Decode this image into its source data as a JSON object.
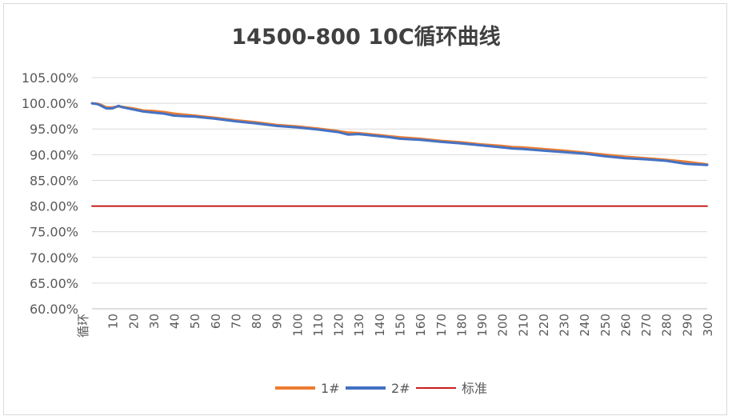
{
  "chart_data": {
    "type": "line",
    "title": "14500-800  10C循环曲线",
    "xlabel": "",
    "ylabel": "",
    "x_first_label": "循环",
    "x_ticks": [
      10,
      20,
      30,
      40,
      50,
      60,
      70,
      80,
      90,
      100,
      110,
      120,
      130,
      140,
      150,
      160,
      170,
      180,
      190,
      200,
      210,
      220,
      230,
      240,
      250,
      260,
      270,
      280,
      290,
      300
    ],
    "xlim": [
      0,
      300
    ],
    "ylim": [
      60,
      105
    ],
    "y_ticks": [
      "60.00%",
      "65.00%",
      "70.00%",
      "75.00%",
      "80.00%",
      "85.00%",
      "90.00%",
      "95.00%",
      "100.00%",
      "105.00%"
    ],
    "y_tick_values": [
      60,
      65,
      70,
      75,
      80,
      85,
      90,
      95,
      100,
      105
    ],
    "grid": true,
    "legend_position": "bottom",
    "series": [
      {
        "name": "1#",
        "color": "#ED7D31",
        "x": [
          0,
          3,
          5,
          7,
          10,
          13,
          15,
          20,
          25,
          30,
          35,
          40,
          45,
          50,
          60,
          70,
          80,
          90,
          100,
          110,
          120,
          125,
          130,
          140,
          145,
          150,
          160,
          170,
          180,
          190,
          200,
          205,
          210,
          220,
          230,
          240,
          250,
          260,
          270,
          280,
          290,
          300
        ],
        "y": [
          100.0,
          99.9,
          99.6,
          99.2,
          99.2,
          99.4,
          99.3,
          99.0,
          98.6,
          98.5,
          98.3,
          98.0,
          97.8,
          97.6,
          97.2,
          96.7,
          96.3,
          95.8,
          95.5,
          95.1,
          94.6,
          94.3,
          94.2,
          93.8,
          93.6,
          93.4,
          93.1,
          92.7,
          92.4,
          92.0,
          91.7,
          91.5,
          91.4,
          91.1,
          90.8,
          90.4,
          90.0,
          89.6,
          89.3,
          89.0,
          88.6,
          88.1
        ]
      },
      {
        "name": "2#",
        "color": "#4472C4",
        "x": [
          0,
          3,
          5,
          7,
          10,
          13,
          15,
          20,
          25,
          30,
          35,
          40,
          45,
          50,
          60,
          70,
          80,
          90,
          100,
          110,
          120,
          125,
          130,
          140,
          145,
          150,
          160,
          170,
          180,
          190,
          200,
          205,
          210,
          220,
          230,
          240,
          250,
          260,
          270,
          280,
          290,
          300
        ],
        "y": [
          100.0,
          99.8,
          99.4,
          99.0,
          99.0,
          99.5,
          99.2,
          98.8,
          98.4,
          98.2,
          98.0,
          97.6,
          97.5,
          97.4,
          97.0,
          96.5,
          96.1,
          95.6,
          95.3,
          94.9,
          94.4,
          93.9,
          94.0,
          93.6,
          93.4,
          93.1,
          92.9,
          92.5,
          92.2,
          91.8,
          91.4,
          91.2,
          91.1,
          90.8,
          90.5,
          90.2,
          89.7,
          89.3,
          89.1,
          88.8,
          88.2,
          88.0
        ]
      },
      {
        "name": "标准",
        "color": "#C00000",
        "x": [
          0,
          300
        ],
        "y": [
          80,
          80
        ]
      }
    ]
  }
}
